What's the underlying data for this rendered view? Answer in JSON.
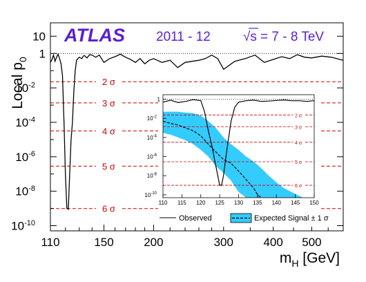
{
  "experiment": "ATLAS",
  "years": "2011 - 12",
  "energy_label": "= 7 - 8 TeV",
  "sqrt_symbol": "√s",
  "colors": {
    "observed": "#000000",
    "sigma": "#cc0000",
    "band": "#33ccff",
    "text": "#5a1fd1"
  },
  "chart_data": [
    {
      "type": "line",
      "title": "",
      "xlabel": "m_H [GeV]",
      "ylabel": "Local p_0",
      "xscale": "log",
      "yscale": "log",
      "xlim": [
        110,
        600
      ],
      "ylim": [
        5e-11,
        60
      ],
      "x_ticks": [
        110,
        150,
        200,
        300,
        400,
        500
      ],
      "y_ticks": [
        {
          "v": 1e-10,
          "m": "10",
          "e": "-10"
        },
        {
          "v": 1e-08,
          "m": "10",
          "e": "-8"
        },
        {
          "v": 1e-06,
          "m": "10",
          "e": "-6"
        },
        {
          "v": 0.0001,
          "m": "10",
          "e": "-4"
        },
        {
          "v": 0.01,
          "m": "10",
          "e": "-2"
        },
        {
          "v": 1,
          "m": "1",
          "e": ""
        },
        {
          "v": 10,
          "m": "10",
          "e": ""
        }
      ],
      "sigma_lines": [
        {
          "label": "2 σ",
          "p": 0.0228
        },
        {
          "label": "3 σ",
          "p": 0.00135
        },
        {
          "label": "4 σ",
          "p": 3.17e-05
        },
        {
          "label": "5 σ",
          "p": 2.87e-07
        },
        {
          "label": "6 σ",
          "p": 9.9e-10
        }
      ],
      "reference_line": 1,
      "series": [
        {
          "name": "Observed",
          "x": [
            110,
            111,
            112,
            113,
            114,
            115,
            116,
            117,
            118,
            119,
            120,
            121,
            122,
            123,
            124,
            125,
            126,
            127,
            128,
            129,
            130,
            131,
            132,
            133,
            134,
            136,
            138,
            140,
            143,
            146,
            150,
            155,
            160,
            165,
            170,
            175,
            180,
            185,
            190,
            195,
            200,
            210,
            220,
            230,
            240,
            250,
            260,
            270,
            280,
            290,
            300,
            320,
            340,
            360,
            380,
            400,
            420,
            440,
            460,
            480,
            500,
            530,
            560,
            600
          ],
          "y": [
            0.3,
            0.45,
            0.8,
            0.35,
            0.6,
            0.9,
            0.5,
            0.25,
            0.05,
            0.0001,
            1e-07,
            1e-09,
            9e-10,
            1e-07,
            1e-05,
            0.0001,
            0.006,
            0.1,
            0.4,
            0.5,
            0.6,
            0.55,
            0.5,
            0.7,
            0.75,
            0.55,
            0.85,
            0.8,
            0.6,
            0.8,
            0.3,
            0.5,
            0.65,
            0.9,
            0.6,
            0.45,
            0.3,
            0.5,
            0.25,
            0.4,
            0.5,
            0.3,
            0.4,
            0.15,
            0.3,
            0.35,
            0.4,
            0.5,
            0.8,
            0.5,
            0.12,
            0.35,
            0.5,
            0.8,
            0.3,
            0.45,
            0.65,
            0.5,
            0.85,
            0.6,
            0.55,
            0.7,
            0.6,
            0.4
          ]
        }
      ]
    },
    {
      "type": "area",
      "title": "",
      "xlabel": "",
      "ylabel": "",
      "xlim": [
        110,
        150
      ],
      "ylim": [
        5e-11,
        3
      ],
      "yscale": "log",
      "x_ticks": [
        110,
        115,
        120,
        125,
        130,
        135,
        140,
        145,
        150
      ],
      "y_ticks": [
        {
          "v": 1e-10,
          "m": "10",
          "e": "-10"
        },
        {
          "v": 1e-08,
          "m": "10",
          "e": "-8"
        },
        {
          "v": 1e-06,
          "m": "10",
          "e": "-6"
        },
        {
          "v": 0.0001,
          "m": "10",
          "e": "-4"
        },
        {
          "v": 0.01,
          "m": "10",
          "e": "-2"
        },
        {
          "v": 1,
          "m": "1",
          "e": ""
        }
      ],
      "sigma_lines": [
        {
          "label": "2 σ",
          "p": 0.0228
        },
        {
          "label": "3 σ",
          "p": 0.00135
        },
        {
          "label": "4 σ",
          "p": 3.17e-05
        },
        {
          "label": "5 σ",
          "p": 2.87e-07
        },
        {
          "label": "6 σ",
          "p": 9.9e-10
        }
      ],
      "reference_line": 1,
      "legend": [
        {
          "label": "Observed",
          "style": "solid"
        },
        {
          "label": "Expected Signal ± 1 σ",
          "style": "dashed-band"
        }
      ],
      "series": [
        {
          "name": "Observed",
          "x": [
            110,
            112,
            114,
            116,
            118,
            120,
            121,
            122,
            123,
            124,
            125,
            125.5,
            126,
            127,
            128,
            129,
            130,
            132,
            134,
            136,
            138,
            140,
            142,
            144,
            146,
            148,
            150
          ],
          "y": [
            0.5,
            0.8,
            0.45,
            0.6,
            0.9,
            0.7,
            0.05,
            0.0005,
            1e-05,
            1e-07,
            1e-09,
            1e-09,
            1e-08,
            1e-05,
            0.005,
            0.15,
            0.5,
            0.7,
            0.8,
            0.6,
            0.65,
            0.75,
            0.85,
            0.7,
            0.7,
            0.6,
            0.7
          ]
        },
        {
          "name": "Expected Signal",
          "x": [
            110,
            112,
            114,
            116,
            118,
            120,
            122,
            124,
            126,
            128,
            130,
            132,
            134,
            135,
            136
          ],
          "y": [
            0.005,
            0.003,
            0.002,
            0.001,
            0.0005,
            0.00015,
            2e-05,
            3e-06,
            5e-07,
            2e-07,
            3e-08,
            4e-09,
            5e-10,
            1e-10,
            5e-11
          ]
        },
        {
          "name": "± 1 σ band",
          "x": [
            110,
            112,
            114,
            116,
            118,
            120,
            122,
            124,
            126,
            128,
            130,
            132,
            134,
            136,
            138,
            140,
            142,
            144,
            146,
            147
          ],
          "upper": [
            0.05,
            0.05,
            0.05,
            0.04,
            0.035,
            0.02,
            0.005,
            0.001,
            0.0001,
            2e-05,
            5e-06,
            1e-06,
            3e-07,
            6e-08,
            1e-08,
            2e-09,
            5e-10,
            2e-10,
            8e-11,
            5e-11
          ],
          "lower": [
            0.0003,
            0.0002,
            0.0001,
            5e-05,
            2e-05,
            5e-06,
            1e-06,
            1e-07,
            2e-08,
            3e-09,
            2e-10,
            5e-11,
            5e-11,
            5e-11,
            5e-11,
            5e-11,
            5e-11,
            5e-11,
            5e-11,
            5e-11
          ]
        }
      ]
    }
  ]
}
